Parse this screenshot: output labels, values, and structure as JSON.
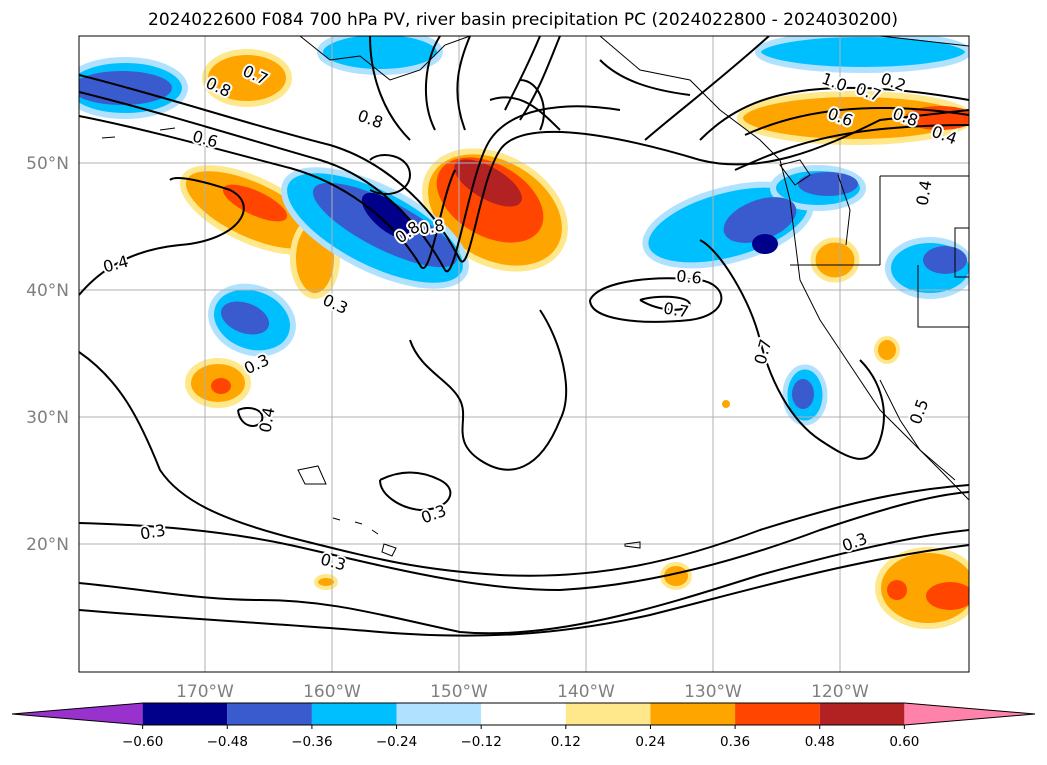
{
  "title": "2024022600 F084 700 hPa PV, river basin precipitation PC (2024022800 - 2024030200)",
  "map": {
    "longitude_ticks": [
      "170°W",
      "160°W",
      "150°W",
      "140°W",
      "130°W",
      "120°W"
    ],
    "latitude_ticks": [
      "50°N",
      "40°N",
      "30°N",
      "20°N"
    ],
    "gridlines": true,
    "pv_contour_labels": [
      "0.8",
      "0.7",
      "0.8",
      "0.6",
      "0.8",
      "0.8",
      "0.4",
      "0.3",
      "0.3",
      "0.4",
      "0.3",
      "0.3",
      "0.3",
      "0.7",
      "0.6",
      "0.7",
      "0.3",
      "0.2",
      "1.0",
      "0.7",
      "0.8",
      "0.6",
      "0.4",
      "0.5",
      "0.4"
    ]
  },
  "colorbar": {
    "ticks": [
      "−0.60",
      "−0.48",
      "−0.36",
      "−0.24",
      "−0.12",
      "0.12",
      "0.24",
      "0.36",
      "0.48",
      "0.60"
    ],
    "colors": [
      "#9932cc",
      "#00008b",
      "#3a5bcd",
      "#00bfff",
      "#b0e2ff",
      "#ffffff",
      "#ffe88c",
      "#ffa500",
      "#ff4500",
      "#b22222",
      "#ff82ab"
    ],
    "extend": "both"
  }
}
